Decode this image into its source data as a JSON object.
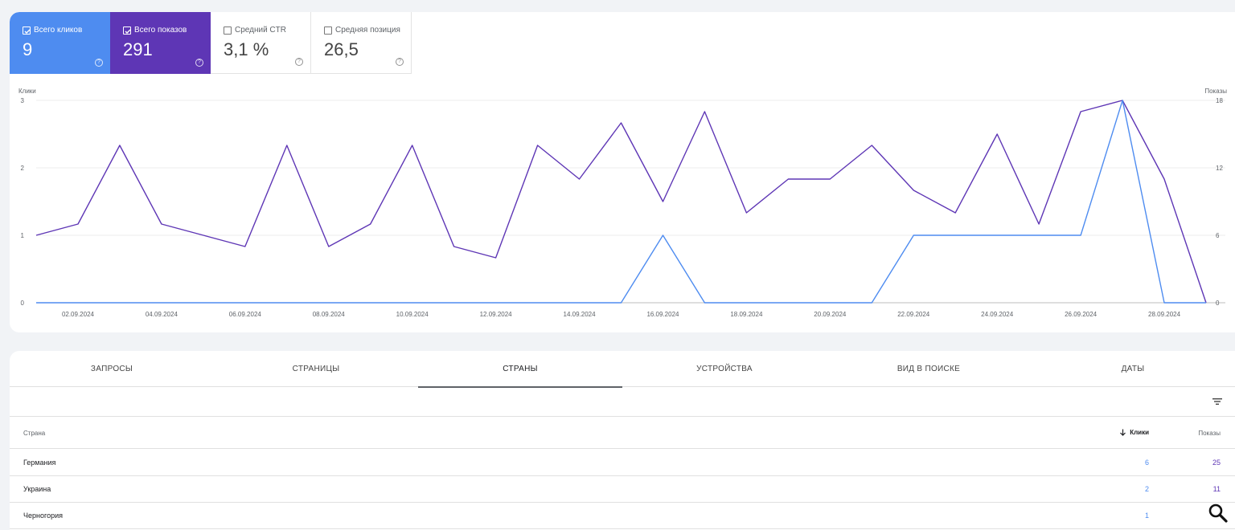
{
  "metrics": [
    {
      "label": "Всего кликов",
      "value": "9",
      "checked": true
    },
    {
      "label": "Всего показов",
      "value": "291",
      "checked": true
    },
    {
      "label": "Средний CTR",
      "value": "3,1 %",
      "checked": false
    },
    {
      "label": "Средняя позиция",
      "value": "26,5",
      "checked": false
    }
  ],
  "colors": {
    "clicks": "#4e8cf0",
    "impressions": "#5e36b5"
  },
  "chart_data": {
    "type": "line",
    "x": [
      "01.09.2024",
      "02.09.2024",
      "03.09.2024",
      "04.09.2024",
      "05.09.2024",
      "06.09.2024",
      "07.09.2024",
      "08.09.2024",
      "09.09.2024",
      "10.09.2024",
      "11.09.2024",
      "12.09.2024",
      "13.09.2024",
      "14.09.2024",
      "15.09.2024",
      "16.09.2024",
      "17.09.2024",
      "18.09.2024",
      "19.09.2024",
      "20.09.2024",
      "21.09.2024",
      "22.09.2024",
      "23.09.2024",
      "24.09.2024",
      "25.09.2024",
      "26.09.2024",
      "27.09.2024",
      "28.09.2024",
      "29.09.2024"
    ],
    "xticks": [
      "02.09.2024",
      "04.09.2024",
      "06.09.2024",
      "08.09.2024",
      "10.09.2024",
      "12.09.2024",
      "14.09.2024",
      "16.09.2024",
      "18.09.2024",
      "20.09.2024",
      "22.09.2024",
      "24.09.2024",
      "26.09.2024",
      "28.09.2024"
    ],
    "series": [
      {
        "name": "Клики",
        "axis": "left",
        "values": [
          0,
          0,
          0,
          0,
          0,
          0,
          0,
          0,
          0,
          0,
          0,
          0,
          0,
          0,
          0,
          1,
          0,
          0,
          0,
          0,
          0,
          1,
          1,
          1,
          1,
          1,
          3,
          0,
          0
        ]
      },
      {
        "name": "Показы",
        "axis": "right",
        "values": [
          6,
          7,
          14,
          7,
          6,
          5,
          14,
          5,
          7,
          14,
          5,
          4,
          14,
          11,
          16,
          9,
          17,
          8,
          11,
          11,
          14,
          10,
          8,
          15,
          7,
          17,
          18,
          11,
          0
        ]
      }
    ],
    "ylabel_left": "Клики",
    "ylabel_right": "Показы",
    "ylim_left": [
      0,
      3
    ],
    "ylim_right": [
      0,
      18
    ],
    "yticks_left": [
      "0",
      "1",
      "2",
      "3"
    ],
    "yticks_right": [
      "0",
      "6",
      "12",
      "18"
    ],
    "grid": true
  },
  "tabs": [
    "ЗАПРОСЫ",
    "СТРАНИЦЫ",
    "СТРАНЫ",
    "УСТРОЙСТВА",
    "ВИД В ПОИСКЕ",
    "ДАТЫ"
  ],
  "active_tab": "СТРАНЫ",
  "table": {
    "headers": {
      "country": "Страна",
      "clicks": "Клики",
      "impressions": "Показы"
    },
    "rows": [
      {
        "country": "Германия",
        "clicks": "6",
        "impressions": "25"
      },
      {
        "country": "Украина",
        "clicks": "2",
        "impressions": "11"
      },
      {
        "country": "Черногория",
        "clicks": "1",
        "impressions": ""
      }
    ]
  },
  "icons": {
    "filter": "filter-icon",
    "search": "search-icon",
    "help": "help-icon",
    "sort": "arrow-down-icon"
  }
}
